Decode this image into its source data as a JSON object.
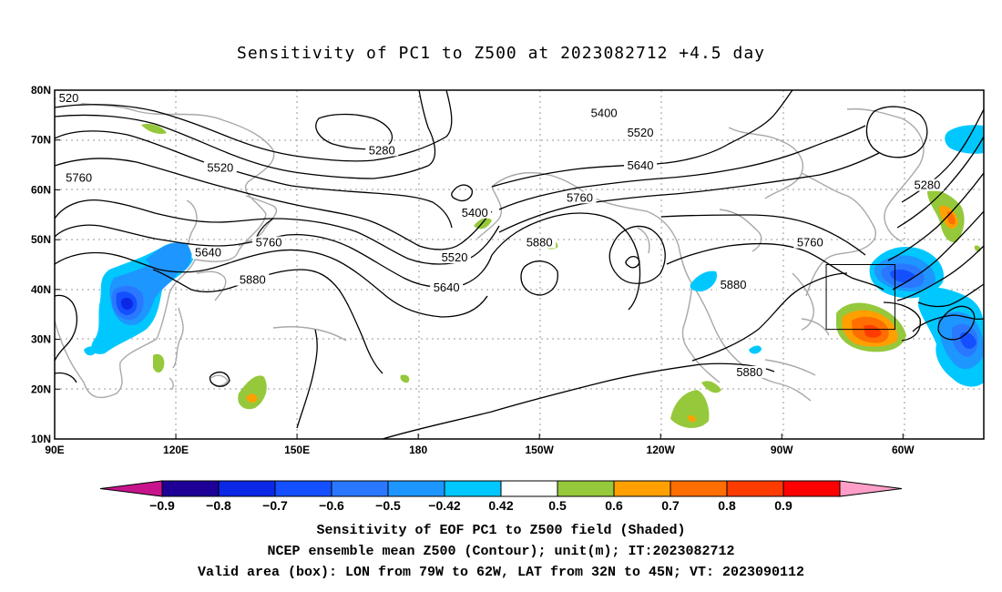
{
  "title": "Sensitivity of PC1 to Z500 at 2023082712 +4.5 day",
  "captions": {
    "line1": "Sensitivity of EOF PC1 to Z500 field (Shaded)",
    "line2": "NCEP ensemble mean Z500 (Contour); unit(m); IT:2023082712",
    "line3": "Valid area (box): LON from 79W to 62W, LAT from 32N to 45N; VT: 2023090112"
  },
  "map": {
    "lon_ticks": [
      {
        "lon": 90,
        "label": "90E"
      },
      {
        "lon": 120,
        "label": "120E"
      },
      {
        "lon": 150,
        "label": "150E"
      },
      {
        "lon": 180,
        "label": "180"
      },
      {
        "lon": 210,
        "label": "150W"
      },
      {
        "lon": 240,
        "label": "120W"
      },
      {
        "lon": 270,
        "label": "90W"
      },
      {
        "lon": 300,
        "label": "60W"
      }
    ],
    "lat_ticks": [
      {
        "lat": 80,
        "label": "80N"
      },
      {
        "lat": 70,
        "label": "70N"
      },
      {
        "lat": 60,
        "label": "60N"
      },
      {
        "lat": 50,
        "label": "50N"
      },
      {
        "lat": 40,
        "label": "40N"
      },
      {
        "lat": 30,
        "label": "30N"
      },
      {
        "lat": 20,
        "label": "20N"
      },
      {
        "lat": 10,
        "label": "10N"
      }
    ],
    "lon_range": [
      90,
      320
    ],
    "lat_range": [
      10,
      80
    ],
    "valid_box": {
      "lon": [
        281,
        298
      ],
      "lat": [
        32,
        45
      ]
    },
    "contour_labels": [
      {
        "text": "520",
        "lon": 93.5,
        "lat": 78
      },
      {
        "text": "5760",
        "lon": 96,
        "lat": 62
      },
      {
        "text": "5520",
        "lon": 131,
        "lat": 64
      },
      {
        "text": "5280",
        "lon": 171,
        "lat": 67.5
      },
      {
        "text": "5400",
        "lon": 226,
        "lat": 75
      },
      {
        "text": "5520",
        "lon": 235,
        "lat": 71
      },
      {
        "text": "5640",
        "lon": 235,
        "lat": 64.5
      },
      {
        "text": "5760",
        "lon": 220,
        "lat": 58
      },
      {
        "text": "5400",
        "lon": 194,
        "lat": 55
      },
      {
        "text": "5880",
        "lon": 210,
        "lat": 49
      },
      {
        "text": "5520",
        "lon": 189,
        "lat": 46
      },
      {
        "text": "5640",
        "lon": 128,
        "lat": 47
      },
      {
        "text": "5760",
        "lon": 143,
        "lat": 49
      },
      {
        "text": "5880",
        "lon": 139,
        "lat": 41.5
      },
      {
        "text": "5640",
        "lon": 187,
        "lat": 40
      },
      {
        "text": "5880",
        "lon": 258,
        "lat": 40.5
      },
      {
        "text": "5760",
        "lon": 277,
        "lat": 49
      },
      {
        "text": "5280",
        "lon": 306,
        "lat": 60.5
      },
      {
        "text": "5880",
        "lon": 262,
        "lat": 23
      }
    ]
  },
  "colorbar": {
    "colors": [
      "#1e0096",
      "#0a28e6",
      "#1450ff",
      "#2a78ff",
      "#1e96ff",
      "#00c8ff",
      "#ffffff",
      "#96c83c",
      "#ffa000",
      "#ff6e00",
      "#ff3c00",
      "#ff0000"
    ],
    "low_tri": "#c8148c",
    "high_tri": "#ff9fc8",
    "labels": [
      "−0.9",
      "−0.8",
      "−0.7",
      "−0.6",
      "−0.5",
      "−0.42",
      "0.42",
      "0.5",
      "0.6",
      "0.7",
      "0.8",
      "0.9"
    ]
  }
}
